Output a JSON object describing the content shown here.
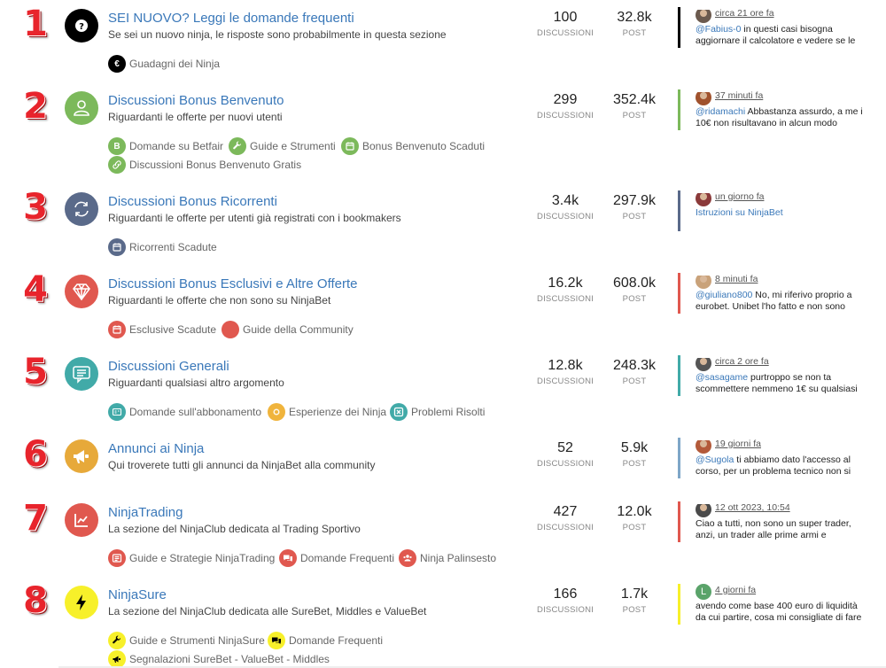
{
  "categories": [
    {
      "number": "1",
      "title": "SEI NUOVO? Leggi le domande frequenti",
      "description": "Se sei un nuovo ninja, le risposte sono probabilmente in questa sezione",
      "icon": "question-icon",
      "color": "#000000",
      "discussions": "100",
      "posts": "32.8k",
      "stat_discussions_label": "DISCUSSIONI",
      "stat_posts_label": "POST",
      "subcategories": [
        {
          "label": "Guadagni dei Ninja",
          "icon": "euro-icon",
          "color": "#000000",
          "glyph": "€"
        }
      ],
      "last_post": {
        "time": "circa 21 ore fa",
        "user": "@Fabius-0",
        "text": " in questi casi bisogna aggiornare il calcolatore e vedere se le",
        "bar_color": "#000000"
      }
    },
    {
      "number": "2",
      "title": "Discussioni Bonus Benvenuto",
      "description": "Riguardanti le offerte per nuovi utenti",
      "icon": "user-icon",
      "color": "#7cb95b",
      "discussions": "299",
      "posts": "352.4k",
      "stat_discussions_label": "DISCUSSIONI",
      "stat_posts_label": "POST",
      "subcategories": [
        {
          "label": "Domande su Betfair",
          "icon": "letter-b-icon",
          "color": "#7cb95b",
          "glyph": "B"
        },
        {
          "label": "Guide e Strumenti",
          "icon": "wrench-icon",
          "color": "#7cb95b",
          "glyph": ""
        },
        {
          "label": "Bonus Benvenuto Scaduti",
          "icon": "calendar-icon",
          "color": "#7cb95b",
          "glyph": ""
        },
        {
          "label": "Discussioni Bonus Benvenuto Gratis",
          "icon": "link-icon",
          "color": "#7cb95b",
          "glyph": ""
        }
      ],
      "last_post": {
        "time": "37 minuti fa",
        "user": "@ridamachi",
        "text": " Abbastanza assurdo, a me i 10€ non risultavano in alcun modo",
        "bar_color": "#7cb95b"
      }
    },
    {
      "number": "3",
      "title": "Discussioni Bonus Ricorrenti",
      "description": "Riguardanti le offerte per utenti già registrati con i bookmakers",
      "icon": "refresh-icon",
      "color": "#5a6a8a",
      "discussions": "3.4k",
      "posts": "297.9k",
      "stat_discussions_label": "DISCUSSIONI",
      "stat_posts_label": "POST",
      "subcategories": [
        {
          "label": "Ricorrenti Scadute",
          "icon": "calendar-icon",
          "color": "#5a6a8a",
          "glyph": ""
        }
      ],
      "last_post": {
        "time": "un giorno fa",
        "user": "",
        "text": "Istruzioni su NinjaBet",
        "bar_color": "#5a6a8a"
      }
    },
    {
      "number": "4",
      "title": "Discussioni Bonus Esclusivi e Altre Offerte",
      "description": "Riguardanti le offerte che non sono su NinjaBet",
      "icon": "diamond-icon",
      "color": "#e0584f",
      "discussions": "16.2k",
      "posts": "608.0k",
      "stat_discussions_label": "DISCUSSIONI",
      "stat_posts_label": "POST",
      "subcategories": [
        {
          "label": "Esclusive Scadute",
          "icon": "calendar-icon",
          "color": "#e0584f",
          "glyph": ""
        },
        {
          "label": "Guide della Community",
          "icon": "dot-icon",
          "color": "#e0584f",
          "glyph": ""
        }
      ],
      "last_post": {
        "time": "8 minuti fa",
        "user": "@giuliano800",
        "text": " No, mi riferivo proprio a eurobet. Unibet l'ho fatto e non sono",
        "bar_color": "#e0584f"
      }
    },
    {
      "number": "5",
      "title": "Discussioni Generali",
      "description": "Riguardanti qualsiasi altro argomento",
      "icon": "chat-icon",
      "color": "#41aaa8",
      "discussions": "12.8k",
      "posts": "248.3k",
      "stat_discussions_label": "DISCUSSIONI",
      "stat_posts_label": "POST",
      "subcategories": [
        {
          "label": "Domande sull'abbonamento",
          "icon": "card-icon",
          "color": "#41aaa8",
          "glyph": ""
        },
        {
          "label": "Esperienze dei Ninja",
          "icon": "coin-icon",
          "color": "#f0b43c",
          "glyph": ""
        },
        {
          "label": "Problemi Risolti",
          "icon": "close-box-icon",
          "color": "#41aaa8",
          "glyph": ""
        }
      ],
      "last_post": {
        "time": "circa 2 ore fa",
        "user": "@sasagame",
        "text": " purtroppo se non ta scommettere nemmeno 1€ su qualsiasi",
        "bar_color": "#41aaa8"
      }
    },
    {
      "number": "6",
      "title": "Annunci ai Ninja",
      "description": "Qui troverete tutti gli annunci da NinjaBet alla community",
      "icon": "megaphone-icon",
      "color": "#e7a93a",
      "discussions": "52",
      "posts": "5.9k",
      "stat_discussions_label": "DISCUSSIONI",
      "stat_posts_label": "POST",
      "subcategories": [],
      "last_post": {
        "time": "19 giorni fa",
        "user": "@Sugola",
        "text": " ti abbiamo dato l'accesso al corso, per un problema tecnico non si",
        "bar_color": "#7ea6c8"
      }
    },
    {
      "number": "7",
      "title": "NinjaTrading",
      "description": "La sezione del NinjaClub dedicata al Trading Sportivo",
      "icon": "chart-icon",
      "color": "#e0584f",
      "discussions": "427",
      "posts": "12.0k",
      "stat_discussions_label": "DISCUSSIONI",
      "stat_posts_label": "POST",
      "subcategories": [
        {
          "label": "Guide e Strategie NinjaTrading",
          "icon": "list-icon",
          "color": "#e0584f",
          "glyph": ""
        },
        {
          "label": "Domande Frequenti",
          "icon": "comments-icon",
          "color": "#e0584f",
          "glyph": ""
        },
        {
          "label": "Ninja Palinsesto",
          "icon": "users-icon",
          "color": "#e0584f",
          "glyph": ""
        }
      ],
      "last_post": {
        "time": "12 ott 2023, 10:54",
        "user": "",
        "text": "Ciao a tutti, non sono un super trader, anzi, un trader alle prime armi e",
        "bar_color": "#e0584f"
      }
    },
    {
      "number": "8",
      "title": "NinjaSure",
      "description": "La sezione del NinjaClub dedicata alle SureBet, Middles e ValueBet",
      "icon": "bolt-icon",
      "color": "#f7f02a",
      "discussions": "166",
      "posts": "1.7k",
      "stat_discussions_label": "DISCUSSIONI",
      "stat_posts_label": "POST",
      "subcategories": [
        {
          "label": "Guide e Strumenti NinjaSure",
          "icon": "wrench-icon",
          "color": "#f7f02a",
          "glyph": ""
        },
        {
          "label": "Domande Frequenti",
          "icon": "comments-icon",
          "color": "#f7f02a",
          "glyph": ""
        },
        {
          "label": "Segnalazioni SureBet - ValueBet - Middles",
          "icon": "megaphone-icon",
          "color": "#f7f02a",
          "glyph": ""
        }
      ],
      "last_post": {
        "time": "4 giorni fa",
        "user": "",
        "text": "avendo come base 400 euro di liquidità da cui partire, cosa mi consigliate di fare",
        "bar_color": "#f7f02a",
        "avatar_letter": "L"
      }
    }
  ]
}
